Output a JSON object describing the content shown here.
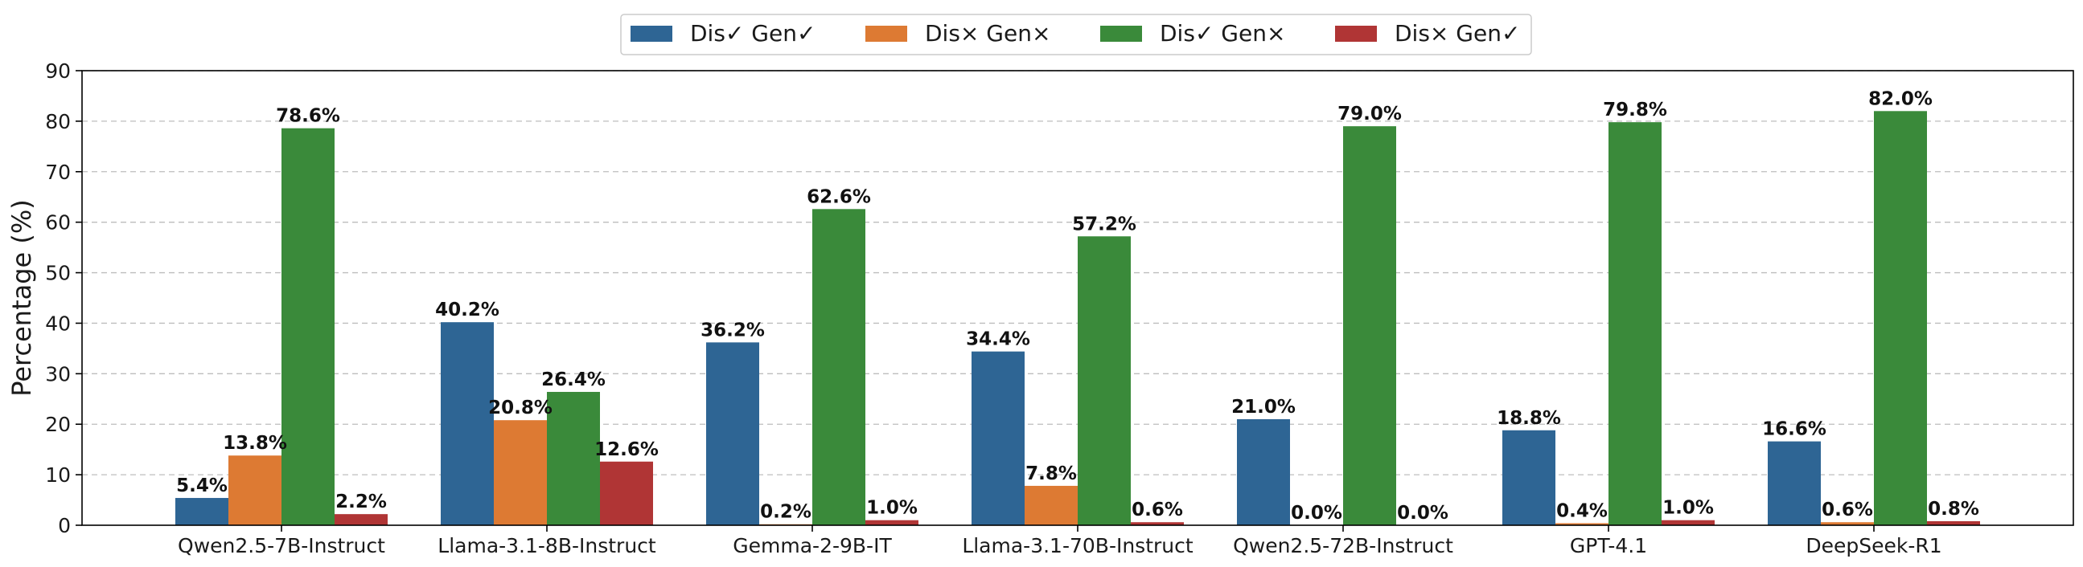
{
  "chart_data": {
    "type": "bar",
    "ylabel": "Percentage (%)",
    "ylim": [
      0,
      90
    ],
    "yticks": [
      0,
      10,
      20,
      30,
      40,
      50,
      60,
      70,
      80,
      90
    ],
    "grid": "y-dashed",
    "legend_position": "top-center",
    "categories": [
      "Qwen2.5-7B-Instruct",
      "Llama-3.1-8B-Instruct",
      "Gemma-2-9B-IT",
      "Llama-3.1-70B-Instruct",
      "Qwen2.5-72B-Instruct",
      "GPT-4.1",
      "DeepSeek-R1"
    ],
    "series": [
      {
        "name": "Dis✓ Gen✓",
        "color": "#2e6594",
        "values": [
          5.4,
          40.2,
          36.2,
          34.4,
          21.0,
          18.8,
          16.6
        ],
        "labels": [
          "5.4%",
          "40.2%",
          "36.2%",
          "34.4%",
          "21.0%",
          "18.8%",
          "16.6%"
        ]
      },
      {
        "name": "Dis× Gen×",
        "color": "#dd7a33",
        "values": [
          13.8,
          20.8,
          0.2,
          7.8,
          0.0,
          0.4,
          0.6
        ],
        "labels": [
          "13.8%",
          "20.8%",
          "0.2%",
          "7.8%",
          "0.0%",
          "0.4%",
          "0.6%"
        ]
      },
      {
        "name": "Dis✓ Gen×",
        "color": "#3a8a3a",
        "values": [
          78.6,
          26.4,
          62.6,
          57.2,
          79.0,
          79.8,
          82.0
        ],
        "labels": [
          "78.6%",
          "26.4%",
          "62.6%",
          "57.2%",
          "79.0%",
          "79.8%",
          "82.0%"
        ]
      },
      {
        "name": "Dis× Gen✓",
        "color": "#b03535",
        "values": [
          2.2,
          12.6,
          1.0,
          0.6,
          0.0,
          1.0,
          0.8
        ],
        "labels": [
          "2.2%",
          "12.6%",
          "1.0%",
          "0.6%",
          "0.0%",
          "1.0%",
          "0.8%"
        ]
      }
    ]
  }
}
